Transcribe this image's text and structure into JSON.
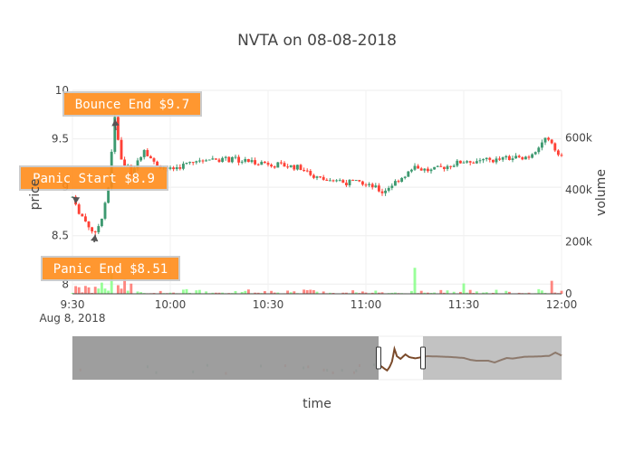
{
  "chart_data": {
    "type": "candlestick",
    "title": "NVTA on 08-08-2018",
    "xlabel": "time",
    "ylabel_left": "price",
    "ylabel_right": "volume",
    "date_label": "Aug 8, 2018",
    "x_range": [
      "09:30",
      "12:00"
    ],
    "x_ticks": [
      "9:30",
      "10:00",
      "10:30",
      "11:00",
      "11:30",
      "12:00"
    ],
    "price_axis": {
      "range": [
        7.9,
        10.0
      ],
      "ticks": [
        "8",
        "8.5",
        "9",
        "9.5",
        "10"
      ]
    },
    "volume_axis": {
      "range": [
        0,
        800000
      ],
      "ticks": [
        "0",
        "200k",
        "400k",
        "600k"
      ]
    },
    "grid": true,
    "colors": {
      "increasing": "#3d9970",
      "decreasing": "#ff4136",
      "volume_up": "#7fff7f",
      "volume_down": "#ff6961",
      "annotation_fill": "#ff8c1a",
      "annotation_border": "#c7c7c7",
      "rangeslider_mask": "#999999"
    },
    "price_key_points": [
      {
        "time": "09:30",
        "price": 8.9
      },
      {
        "time": "09:31",
        "price": 8.8
      },
      {
        "time": "09:35",
        "price": 8.6
      },
      {
        "time": "09:37",
        "price": 8.51
      },
      {
        "time": "09:39",
        "price": 8.7
      },
      {
        "time": "09:41",
        "price": 9.0
      },
      {
        "time": "09:43",
        "price": 9.7
      },
      {
        "time": "09:45",
        "price": 9.3
      },
      {
        "time": "09:48",
        "price": 9.15
      },
      {
        "time": "09:52",
        "price": 9.4
      },
      {
        "time": "09:55",
        "price": 9.25
      },
      {
        "time": "10:00",
        "price": 9.18
      },
      {
        "time": "10:10",
        "price": 9.3
      },
      {
        "time": "10:20",
        "price": 9.28
      },
      {
        "time": "10:30",
        "price": 9.25
      },
      {
        "time": "10:40",
        "price": 9.2
      },
      {
        "time": "10:45",
        "price": 9.1
      },
      {
        "time": "10:50",
        "price": 9.05
      },
      {
        "time": "11:00",
        "price": 9.05
      },
      {
        "time": "11:05",
        "price": 8.95
      },
      {
        "time": "11:10",
        "price": 9.08
      },
      {
        "time": "11:15",
        "price": 9.2
      },
      {
        "time": "11:20",
        "price": 9.17
      },
      {
        "time": "11:30",
        "price": 9.27
      },
      {
        "time": "11:40",
        "price": 9.28
      },
      {
        "time": "11:50",
        "price": 9.32
      },
      {
        "time": "11:55",
        "price": 9.5
      },
      {
        "time": "12:00",
        "price": 9.33
      }
    ],
    "volume_spikes": [
      {
        "time": "11:15",
        "volume": 100000
      },
      {
        "time": "09:42",
        "volume": 75000
      },
      {
        "time": "09:46",
        "volume": 55000
      },
      {
        "time": "11:30",
        "volume": 40000
      },
      {
        "time": "11:57",
        "volume": 50000
      }
    ],
    "annotations": [
      {
        "text": "Bounce End $9.7",
        "time": "09:43",
        "price": 9.7
      },
      {
        "text": "Panic Start $8.9",
        "time": "09:30",
        "price": 8.9
      },
      {
        "text": "Panic End $8.51",
        "time": "09:37",
        "price": 8.51
      }
    ]
  }
}
